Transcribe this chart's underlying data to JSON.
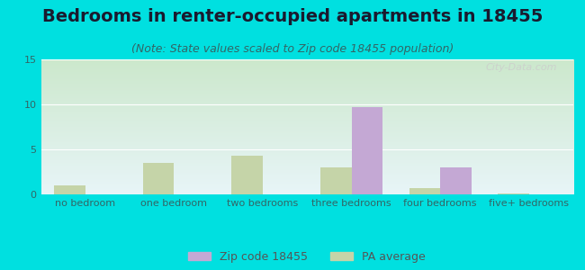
{
  "title": "Bedrooms in renter-occupied apartments in 18455",
  "subtitle": "(Note: State values scaled to Zip code 18455 population)",
  "categories": [
    "no bedroom",
    "one bedroom",
    "two bedrooms",
    "three bedrooms",
    "four bedrooms",
    "five+ bedrooms"
  ],
  "zip_values": [
    0,
    0,
    0,
    9.7,
    3.0,
    0
  ],
  "pa_values": [
    1.0,
    3.5,
    4.3,
    3.0,
    0.7,
    0.15
  ],
  "zip_color": "#c4a8d4",
  "pa_color": "#c5d4a8",
  "background_outer": "#00e0e0",
  "ylim": [
    0,
    15
  ],
  "yticks": [
    0,
    5,
    10,
    15
  ],
  "legend_zip": "Zip code 18455",
  "legend_pa": "PA average",
  "bar_width": 0.35,
  "title_fontsize": 14,
  "subtitle_fontsize": 9,
  "tick_fontsize": 8,
  "legend_fontsize": 9
}
